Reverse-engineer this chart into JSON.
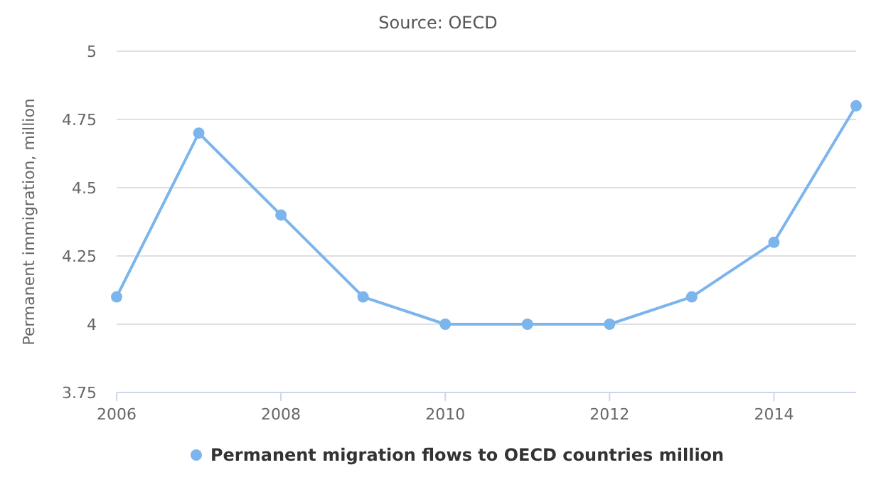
{
  "chart_data": {
    "type": "line",
    "subtitle": "Source: OECD",
    "ylabel": "Permanent immigration, million",
    "x": [
      2006,
      2007,
      2008,
      2009,
      2010,
      2011,
      2012,
      2013,
      2014,
      2015
    ],
    "series": [
      {
        "name": "Permanent migration flows to OECD countries million",
        "color": "#7cb5ec",
        "values": [
          4.1,
          4.7,
          4.4,
          4.1,
          4.0,
          4.0,
          4.0,
          4.1,
          4.3,
          4.8
        ]
      }
    ],
    "xlim": [
      2006,
      2015
    ],
    "xticks": [
      2006,
      2008,
      2010,
      2012,
      2014
    ],
    "ylim": [
      3.75,
      5
    ],
    "yticks": [
      3.75,
      4,
      4.25,
      4.5,
      4.75,
      5
    ],
    "grid": "y",
    "legend": "bottom",
    "marker": "circle",
    "line_style": "solid"
  }
}
